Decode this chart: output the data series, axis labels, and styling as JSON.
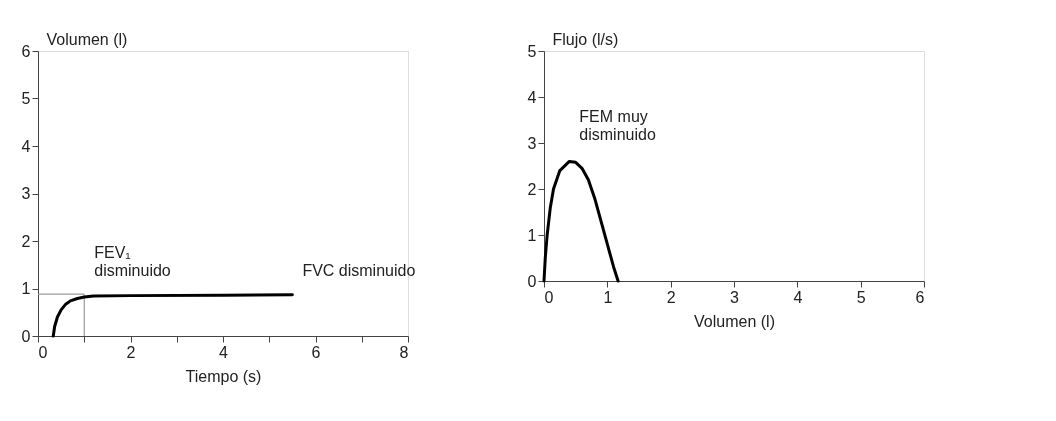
{
  "chart_data": [
    {
      "type": "line",
      "xlabel": "Tiempo (s)",
      "ylabel": "Volumen (l)",
      "x": [
        0.33,
        0.36,
        0.42,
        0.5,
        0.6,
        0.7,
        0.85,
        1.0,
        1.2,
        2.0,
        4.0,
        5.5
      ],
      "series": [
        {
          "color": "#000000",
          "values": [
            0,
            0.2,
            0.4,
            0.55,
            0.67,
            0.74,
            0.79,
            0.82,
            0.84,
            0.85,
            0.86,
            0.87
          ]
        }
      ],
      "xlim": [
        0,
        8
      ],
      "ylim": [
        0,
        6
      ],
      "xticks": [
        0,
        {
          "value": 1,
          "label": null
        },
        2,
        {
          "value": 3,
          "label": null
        },
        4,
        {
          "value": 5,
          "label": null
        },
        6,
        {
          "value": 7,
          "label": null
        },
        8
      ],
      "yticks": [
        0,
        1,
        2,
        3,
        4,
        5,
        6
      ],
      "ref_lines": [
        {
          "axis": "y",
          "value": 0.88,
          "color": "#999999"
        },
        {
          "axis": "x",
          "value": 1,
          "color": "#999999"
        }
      ],
      "annotations": [
        {
          "text": "FEV₁\ndisminuido",
          "x": 1,
          "y": 0.82
        },
        {
          "text": "FVC disminuido",
          "x": 5.5,
          "y": 0.87
        }
      ],
      "grid": false,
      "marker": "none",
      "line_style": "solid"
    },
    {
      "type": "line",
      "xlabel": "Volumen (l)",
      "ylabel": "Flujo (l/s)",
      "x": [
        0,
        0.02,
        0.05,
        0.1,
        0.15,
        0.25,
        0.4,
        0.5,
        0.6,
        0.7,
        0.8,
        0.9,
        1.0,
        1.1,
        1.17
      ],
      "series": [
        {
          "color": "#000000",
          "values": [
            0,
            0.5,
            1.0,
            1.6,
            2.0,
            2.4,
            2.6,
            2.58,
            2.45,
            2.2,
            1.8,
            1.3,
            0.8,
            0.3,
            0
          ]
        }
      ],
      "xlim": [
        0,
        6
      ],
      "ylim": [
        0,
        5
      ],
      "xticks": [
        0,
        1,
        2,
        3,
        4,
        5,
        6
      ],
      "yticks": [
        0,
        1,
        2,
        3,
        4,
        5
      ],
      "annotations": [
        {
          "text": "FEM muy\ndisminuido",
          "x": 0.4,
          "y": 2.6
        }
      ],
      "grid": false,
      "marker": "none",
      "line_style": "solid"
    }
  ]
}
